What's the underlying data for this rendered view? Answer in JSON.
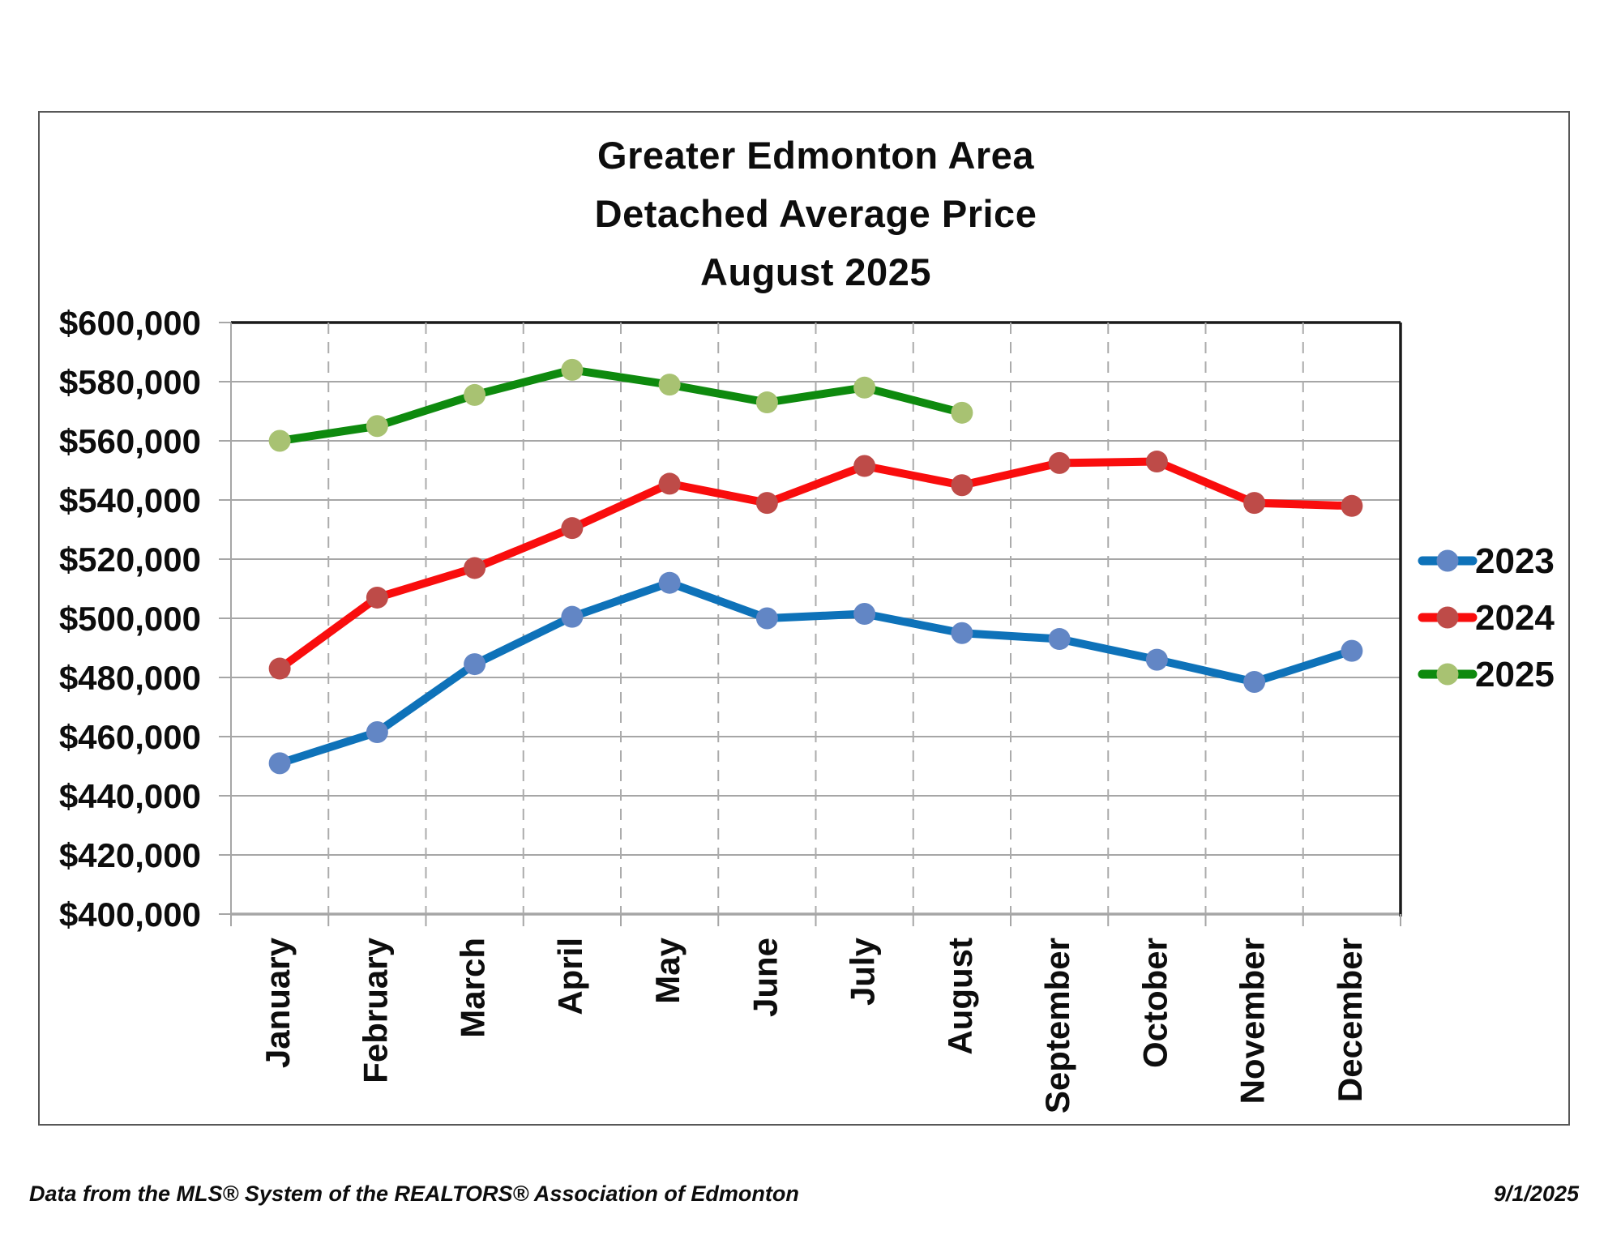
{
  "page": {
    "background": "#FFFFFF",
    "footer_left": "Data from the MLS® System of the REALTORS® Association of Edmonton",
    "footer_right": "9/1/2025"
  },
  "chart_data": {
    "type": "line",
    "title_lines": [
      "Greater Edmonton Area",
      "Detached Average Price",
      "August 2025"
    ],
    "categories": [
      "January",
      "February",
      "March",
      "April",
      "May",
      "June",
      "July",
      "August",
      "September",
      "October",
      "November",
      "December"
    ],
    "y_axis": {
      "min": 400000,
      "max": 600000,
      "step": 20000,
      "tick_labels": [
        "$400,000",
        "$420,000",
        "$440,000",
        "$460,000",
        "$480,000",
        "$500,000",
        "$520,000",
        "$540,000",
        "$560,000",
        "$580,000",
        "$600,000"
      ]
    },
    "grid": {
      "horizontal": "solid",
      "vertical": "dashed"
    },
    "legend_position": "right",
    "series": [
      {
        "name": "2023",
        "line_color": "#0E72B9",
        "marker_color": "#6286C5",
        "values": [
          451000,
          461500,
          484500,
          500500,
          512000,
          500000,
          501500,
          495000,
          493000,
          486000,
          478500,
          489000
        ]
      },
      {
        "name": "2024",
        "line_color": "#F90D0D",
        "marker_color": "#BE4B48",
        "values": [
          483000,
          507000,
          517000,
          530500,
          545500,
          539000,
          551500,
          545000,
          552500,
          553000,
          539000,
          538000
        ]
      },
      {
        "name": "2025",
        "line_color": "#0E8A0E",
        "marker_color": "#A8C272",
        "values": [
          560000,
          565000,
          575500,
          584000,
          579000,
          573000,
          578000,
          569500
        ]
      }
    ],
    "colors": {
      "gridline": "#A6A6A6",
      "dashed_gridline": "#ABABAB",
      "plot_border_dark": "#1A1A1A",
      "axis_text": "#0d0d0d",
      "outer_border": "#585858"
    }
  }
}
